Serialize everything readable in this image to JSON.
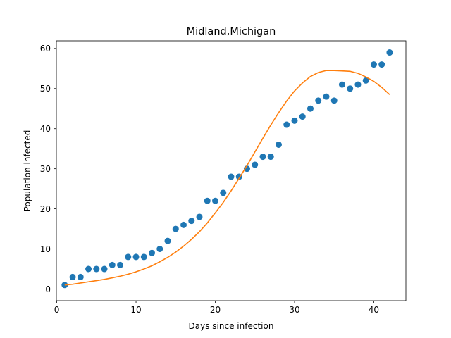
{
  "chart_data": {
    "type": "scatter",
    "title": "Midland,Michigan",
    "xlabel": "Days since infection",
    "ylabel": "Population infected",
    "xlim": [
      -0.05,
      44.05
    ],
    "ylim": [
      -2.9,
      61.9
    ],
    "xticks": [
      0,
      10,
      20,
      30,
      40
    ],
    "yticks": [
      0,
      10,
      20,
      30,
      40,
      50,
      60
    ],
    "grid": false,
    "legend": "none",
    "series": [
      {
        "kind": "scatter",
        "color": "#1f77b4",
        "x": [
          1,
          2,
          3,
          4,
          5,
          6,
          7,
          8,
          9,
          10,
          11,
          12,
          13,
          14,
          15,
          16,
          17,
          18,
          19,
          20,
          21,
          22,
          23,
          24,
          25,
          26,
          27,
          28,
          29,
          30,
          31,
          32,
          33,
          34,
          35,
          36,
          37,
          38,
          39,
          40,
          41,
          42
        ],
        "y": [
          1,
          3,
          3,
          5,
          5,
          5,
          6,
          6,
          8,
          8,
          8,
          9,
          10,
          12,
          15,
          16,
          17,
          18,
          22,
          22,
          24,
          28,
          28,
          30,
          31,
          33,
          33,
          36,
          41,
          42,
          43,
          45,
          47,
          48,
          47,
          51,
          50,
          51,
          52,
          56,
          56,
          59
        ]
      },
      {
        "kind": "line",
        "color": "#ff7f0e",
        "x": [
          1,
          2,
          3,
          4,
          5,
          6,
          7,
          8,
          9,
          10,
          11,
          12,
          13,
          14,
          15,
          16,
          17,
          18,
          19,
          20,
          21,
          22,
          23,
          24,
          25,
          26,
          27,
          28,
          29,
          30,
          31,
          32,
          33,
          34,
          35,
          36,
          37,
          38,
          39,
          40,
          41,
          42
        ],
        "y": [
          1.0,
          1.2,
          1.5,
          1.8,
          2.1,
          2.4,
          2.8,
          3.2,
          3.7,
          4.3,
          5.0,
          5.8,
          6.8,
          7.9,
          9.2,
          10.7,
          12.4,
          14.3,
          16.5,
          19.0,
          21.6,
          24.5,
          27.6,
          30.8,
          34.2,
          37.6,
          40.9,
          44.0,
          46.9,
          49.4,
          51.4,
          53.0,
          54.0,
          54.5,
          54.5,
          54.4,
          54.3,
          53.8,
          52.9,
          51.8,
          50.3,
          48.5
        ]
      }
    ]
  }
}
